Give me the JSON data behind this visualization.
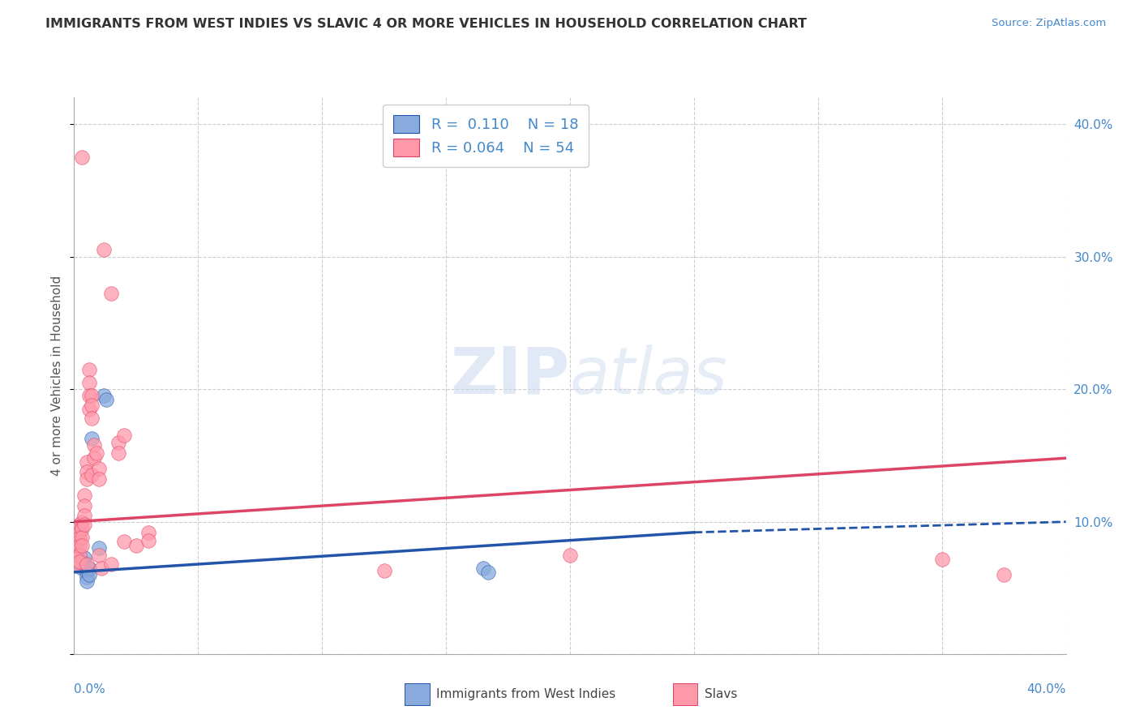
{
  "title": "IMMIGRANTS FROM WEST INDIES VS SLAVIC 4 OR MORE VEHICLES IN HOUSEHOLD CORRELATION CHART",
  "source": "Source: ZipAtlas.com",
  "ylabel": "4 or more Vehicles in Household",
  "xlim": [
    0.0,
    0.4
  ],
  "ylim": [
    0.0,
    0.42
  ],
  "yticks": [
    0.0,
    0.1,
    0.2,
    0.3,
    0.4
  ],
  "background_color": "#ffffff",
  "grid_color": "#cccccc",
  "legend_R1": "R =  0.110",
  "legend_N1": "N = 18",
  "legend_R2": "R = 0.064",
  "legend_N2": "N = 54",
  "color_blue": "#88aadd",
  "color_pink": "#ff99aa",
  "trendline_blue_color": "#2255aa",
  "trendline_pink_color": "#dd4466",
  "label_color": "#4488cc",
  "blue_scatter": [
    [
      0.001,
      0.075
    ],
    [
      0.002,
      0.072
    ],
    [
      0.002,
      0.068
    ],
    [
      0.003,
      0.07
    ],
    [
      0.003,
      0.065
    ],
    [
      0.004,
      0.073
    ],
    [
      0.004,
      0.068
    ],
    [
      0.005,
      0.062
    ],
    [
      0.005,
      0.058
    ],
    [
      0.005,
      0.055
    ],
    [
      0.006,
      0.065
    ],
    [
      0.006,
      0.06
    ],
    [
      0.007,
      0.163
    ],
    [
      0.01,
      0.08
    ],
    [
      0.012,
      0.195
    ],
    [
      0.013,
      0.192
    ],
    [
      0.165,
      0.065
    ],
    [
      0.167,
      0.062
    ]
  ],
  "pink_scatter": [
    [
      0.001,
      0.092
    ],
    [
      0.001,
      0.088
    ],
    [
      0.001,
      0.082
    ],
    [
      0.001,
      0.078
    ],
    [
      0.001,
      0.072
    ],
    [
      0.001,
      0.068
    ],
    [
      0.002,
      0.098
    ],
    [
      0.002,
      0.092
    ],
    [
      0.002,
      0.088
    ],
    [
      0.002,
      0.082
    ],
    [
      0.002,
      0.075
    ],
    [
      0.002,
      0.07
    ],
    [
      0.003,
      0.1
    ],
    [
      0.003,
      0.095
    ],
    [
      0.003,
      0.088
    ],
    [
      0.003,
      0.082
    ],
    [
      0.003,
      0.375
    ],
    [
      0.004,
      0.12
    ],
    [
      0.004,
      0.112
    ],
    [
      0.004,
      0.105
    ],
    [
      0.004,
      0.098
    ],
    [
      0.005,
      0.145
    ],
    [
      0.005,
      0.138
    ],
    [
      0.005,
      0.132
    ],
    [
      0.005,
      0.068
    ],
    [
      0.006,
      0.215
    ],
    [
      0.006,
      0.205
    ],
    [
      0.006,
      0.195
    ],
    [
      0.006,
      0.185
    ],
    [
      0.007,
      0.195
    ],
    [
      0.007,
      0.188
    ],
    [
      0.007,
      0.178
    ],
    [
      0.007,
      0.135
    ],
    [
      0.008,
      0.158
    ],
    [
      0.008,
      0.148
    ],
    [
      0.009,
      0.152
    ],
    [
      0.01,
      0.14
    ],
    [
      0.01,
      0.132
    ],
    [
      0.01,
      0.075
    ],
    [
      0.011,
      0.065
    ],
    [
      0.012,
      0.305
    ],
    [
      0.015,
      0.272
    ],
    [
      0.015,
      0.068
    ],
    [
      0.018,
      0.16
    ],
    [
      0.018,
      0.152
    ],
    [
      0.02,
      0.165
    ],
    [
      0.02,
      0.085
    ],
    [
      0.025,
      0.082
    ],
    [
      0.03,
      0.092
    ],
    [
      0.03,
      0.086
    ],
    [
      0.125,
      0.063
    ],
    [
      0.2,
      0.075
    ],
    [
      0.35,
      0.072
    ],
    [
      0.375,
      0.06
    ]
  ],
  "blue_trend": [
    0.0,
    0.25,
    0.062,
    0.092
  ],
  "blue_trend_dashed": [
    0.25,
    0.4,
    0.092,
    0.1
  ],
  "pink_trend": [
    0.0,
    0.4,
    0.1,
    0.148
  ]
}
